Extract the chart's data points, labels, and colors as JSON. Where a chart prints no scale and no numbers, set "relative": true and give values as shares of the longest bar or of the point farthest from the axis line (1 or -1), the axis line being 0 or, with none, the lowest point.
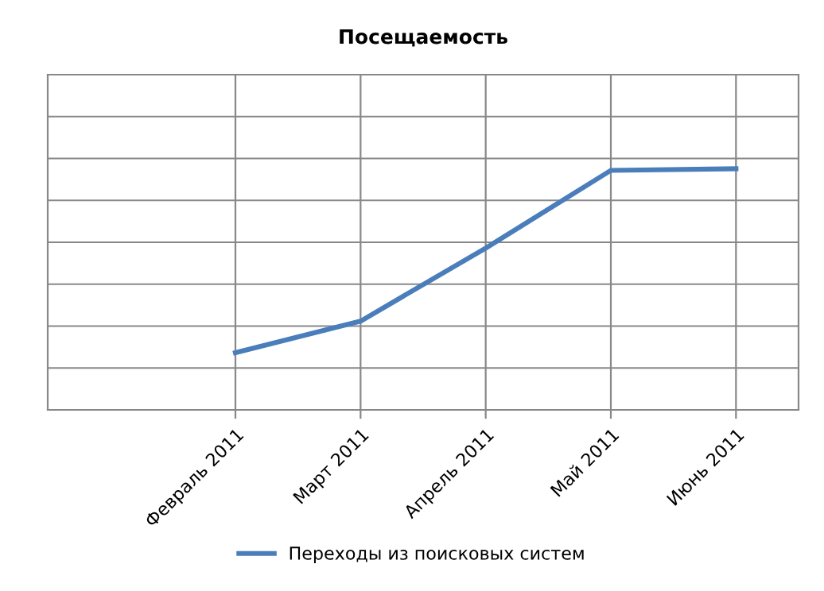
{
  "chart_data": {
    "type": "line",
    "title": "Посещаемость",
    "relative": true,
    "categories": [
      "Февраль 2011",
      "Март 2011",
      "Апрель 2011",
      "Май 2011",
      "Июнь 2011"
    ],
    "series": [
      {
        "name": "Переходы из поисковых систем",
        "color": "#4a7ebb",
        "values": [
          0.237,
          0.368,
          0.671,
          0.993,
          1
        ]
      }
    ],
    "grid": true,
    "legend": "bottom",
    "marker": "none",
    "line_style": "solid"
  }
}
